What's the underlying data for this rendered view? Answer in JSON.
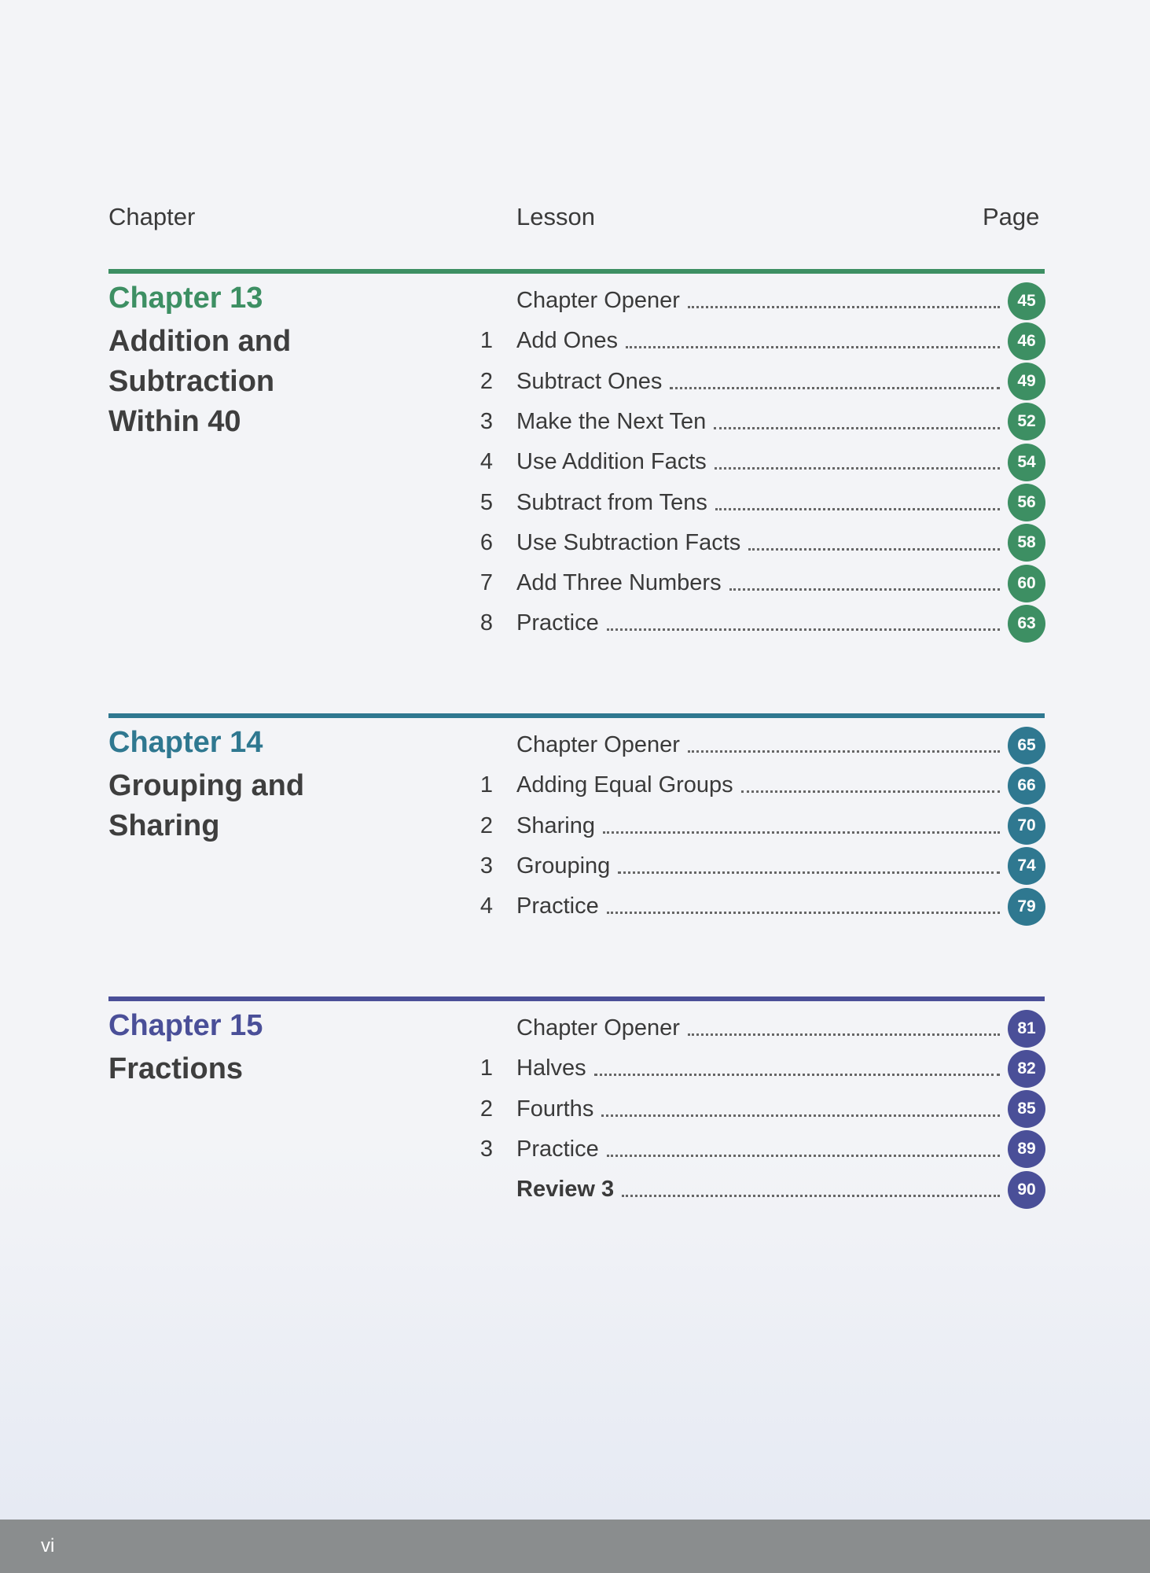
{
  "header": {
    "chapter": "Chapter",
    "lesson": "Lesson",
    "page": "Page"
  },
  "chapters": [
    {
      "number": "Chapter 13",
      "title_lines": [
        "Addition and",
        "Subtraction",
        "Within 40"
      ],
      "color": "#3d8f63",
      "lessons": [
        {
          "n": "",
          "title": "Chapter Opener",
          "page": "45"
        },
        {
          "n": "1",
          "title": "Add Ones",
          "page": "46"
        },
        {
          "n": "2",
          "title": "Subtract Ones",
          "page": "49"
        },
        {
          "n": "3",
          "title": "Make the Next Ten",
          "page": "52"
        },
        {
          "n": "4",
          "title": "Use Addition Facts",
          "page": "54"
        },
        {
          "n": "5",
          "title": "Subtract from Tens",
          "page": "56"
        },
        {
          "n": "6",
          "title": "Use Subtraction Facts",
          "page": "58"
        },
        {
          "n": "7",
          "title": "Add Three Numbers",
          "page": "60"
        },
        {
          "n": "8",
          "title": "Practice",
          "page": "63"
        }
      ]
    },
    {
      "number": "Chapter 14",
      "title_lines": [
        "Grouping and",
        "Sharing"
      ],
      "color": "#2f7890",
      "lessons": [
        {
          "n": "",
          "title": "Chapter Opener",
          "page": "65"
        },
        {
          "n": "1",
          "title": "Adding Equal Groups",
          "page": "66"
        },
        {
          "n": "2",
          "title": "Sharing",
          "page": "70"
        },
        {
          "n": "3",
          "title": "Grouping",
          "page": "74"
        },
        {
          "n": "4",
          "title": "Practice",
          "page": "79"
        }
      ]
    },
    {
      "number": "Chapter 15",
      "title_lines": [
        "Fractions"
      ],
      "color": "#4a4f98",
      "lessons": [
        {
          "n": "",
          "title": "Chapter Opener",
          "page": "81"
        },
        {
          "n": "1",
          "title": "Halves",
          "page": "82"
        },
        {
          "n": "2",
          "title": "Fourths",
          "page": "85"
        },
        {
          "n": "3",
          "title": "Practice",
          "page": "89"
        },
        {
          "n": "",
          "title": "Review 3",
          "page": "90",
          "bold": true
        }
      ]
    }
  ],
  "footer": {
    "page_number": "vi"
  }
}
